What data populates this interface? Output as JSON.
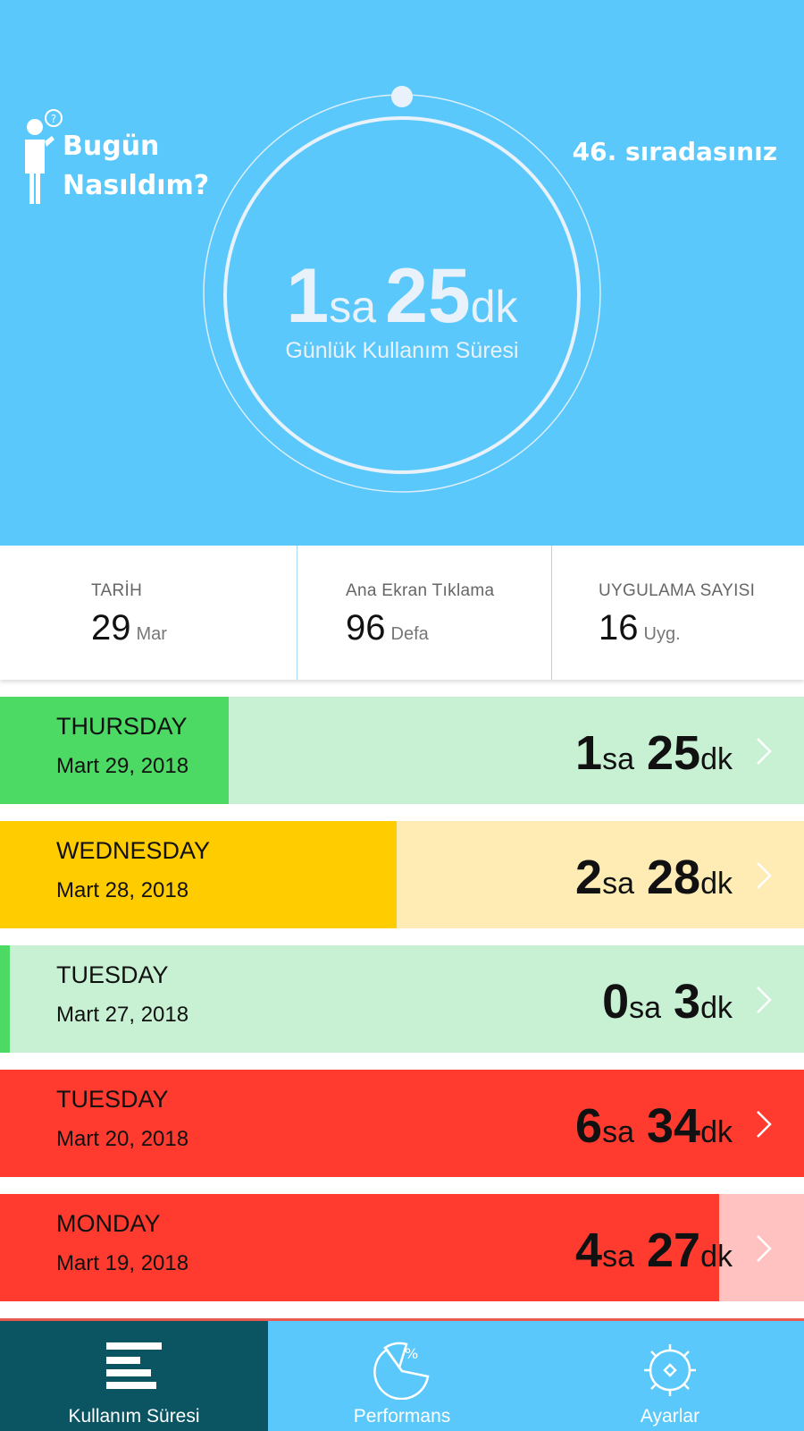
{
  "header": {
    "help_line1": "Bugün",
    "help_line2": "Nasıldım?",
    "rank": "46. sıradasınız",
    "hours": "1",
    "hours_unit": "sa",
    "minutes": "25",
    "minutes_unit": "dk",
    "label": "Günlük Kullanım Süresi",
    "icons": [
      "person-question-icon"
    ]
  },
  "stats": [
    {
      "label": "TARİH",
      "value": "29",
      "unit": "Mar"
    },
    {
      "label": "Ana Ekran Tıklama",
      "value": "96",
      "unit": "Defa"
    },
    {
      "label": "UYGULAMA SAYISI",
      "value": "16",
      "unit": "Uyg."
    }
  ],
  "days": [
    {
      "name": "THURSDAY",
      "date": "Mart 29, 2018",
      "hours": "1",
      "minutes": "25",
      "fill_fraction": 0.284,
      "fill_color": "#4cd964",
      "bg_color": "#c8f1d4"
    },
    {
      "name": "WEDNESDAY",
      "date": "Mart 28, 2018",
      "hours": "2",
      "minutes": "28",
      "fill_fraction": 0.493,
      "fill_color": "#ffcc00",
      "bg_color": "#feecb4"
    },
    {
      "name": "TUESDAY",
      "date": "Mart 27, 2018",
      "hours": "0",
      "minutes": "3",
      "fill_fraction": 0.012,
      "fill_color": "#4cd964",
      "bg_color": "#c8f1d4"
    },
    {
      "name": "TUESDAY",
      "date": "Mart 20, 2018",
      "hours": "6",
      "minutes": "34",
      "fill_fraction": 1.0,
      "fill_color": "#ff3b30",
      "bg_color": "#ffc2c0"
    },
    {
      "name": "MONDAY",
      "date": "Mart 19, 2018",
      "hours": "4",
      "minutes": "27",
      "fill_fraction": 0.894,
      "fill_color": "#ff3b30",
      "bg_color": "#ffc2c0"
    }
  ],
  "units": {
    "hours": "sa",
    "minutes": "dk"
  },
  "nav": [
    {
      "label": "Kullanım Süresi",
      "icon": "bars-icon",
      "active": true
    },
    {
      "label": "Performans",
      "icon": "pie-percent-icon",
      "active": false
    },
    {
      "label": "Ayarlar",
      "icon": "gear-icon",
      "active": false
    }
  ],
  "colors": {
    "primary": "#5ac8fa",
    "nav_active": "#0b5563"
  }
}
